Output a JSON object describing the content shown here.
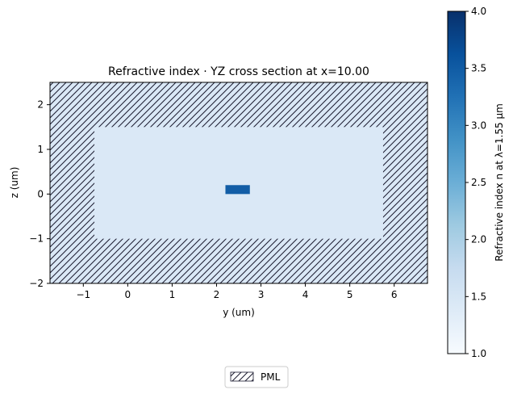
{
  "chart_data": {
    "type": "heatmap",
    "title": "Refractive index · YZ cross section at x=10.00",
    "xlabel": "y (um)",
    "ylabel": "z (um)",
    "xlim": [
      -1.75,
      6.75
    ],
    "ylim": [
      -2.0,
      2.5
    ],
    "x_ticks": [
      -1,
      0,
      1,
      2,
      3,
      4,
      5,
      6
    ],
    "y_ticks": [
      -2,
      -1,
      0,
      1,
      2
    ],
    "grid": false,
    "background_index": 1.44,
    "regions": [
      {
        "name": "cladding",
        "y": [
          -0.75,
          5.75
        ],
        "z": [
          -1.0,
          1.5
        ],
        "index": 1.44
      },
      {
        "name": "waveguide core",
        "y": [
          2.2,
          2.75
        ],
        "z": [
          0.0,
          0.2
        ],
        "index": 3.48
      }
    ],
    "pml": {
      "legend_label": "PML",
      "hatch": "////",
      "inner_y": [
        -0.75,
        5.75
      ],
      "inner_z": [
        -1.0,
        1.5
      ]
    },
    "colorbar": {
      "label": "Refractive index n at λ=1.55 µm",
      "range": [
        1.0,
        4.0
      ],
      "ticks": [
        1.0,
        1.5,
        2.0,
        2.5,
        3.0,
        3.5,
        4.0
      ],
      "colormap": "Blues"
    },
    "legend": {
      "placement": "bottom-center",
      "entries": [
        "PML"
      ]
    }
  }
}
